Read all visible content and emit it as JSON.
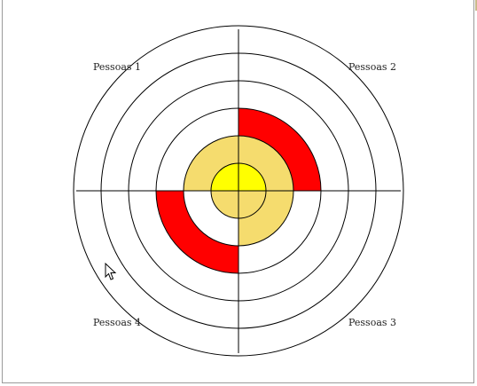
{
  "labels": {
    "q1": "Pessoas 1",
    "q2": "Pessoas 2",
    "q3": "Pessoas 3",
    "q4": "Pessoas 4"
  },
  "colors": {
    "red": "#ff0000",
    "light_yellow": "#f5dc6e",
    "yellow": "#ffff00",
    "line": "#000000"
  },
  "rings": 6,
  "highlighted": [
    {
      "quadrant": "Pessoas 2",
      "ring": 3,
      "color": "red"
    },
    {
      "quadrant": "Pessoas 2",
      "ring": 2,
      "color": "light_yellow"
    },
    {
      "quadrant": "Pessoas 2",
      "ring": 1,
      "color": "yellow"
    },
    {
      "quadrant": "Pessoas 1",
      "ring": 2,
      "color": "light_yellow"
    },
    {
      "quadrant": "Pessoas 1",
      "ring": 1,
      "color": "yellow"
    },
    {
      "quadrant": "Pessoas 3",
      "ring": 2,
      "color": "light_yellow"
    },
    {
      "quadrant": "Pessoas 3",
      "ring": 1,
      "color": "light_yellow"
    },
    {
      "quadrant": "Pessoas 4",
      "ring": 3,
      "color": "red"
    },
    {
      "quadrant": "Pessoas 4",
      "ring": 1,
      "color": "light_yellow"
    }
  ]
}
